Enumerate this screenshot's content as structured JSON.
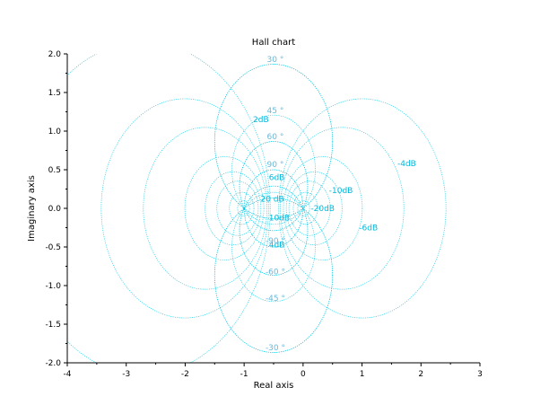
{
  "chart_data": {
    "type": "line",
    "title": "Hall chart",
    "xlabel": "Real axis",
    "ylabel": "Imaginary axis",
    "xlim": [
      -4,
      3
    ],
    "ylim": [
      -2,
      2
    ],
    "x_ticks": [
      -4,
      -3,
      -2,
      -1,
      0,
      1,
      2,
      3
    ],
    "x_tick_labels": [
      "-4",
      "-3",
      "-2",
      "-1",
      "0",
      "1",
      "2",
      "3"
    ],
    "y_ticks": [
      -2.0,
      -1.5,
      -1.0,
      -0.5,
      0.0,
      0.5,
      1.0,
      1.5,
      2.0
    ],
    "y_tick_labels": [
      "-2.0",
      "-1.5",
      "-1.0",
      "-0.5",
      "0.0",
      "0.5",
      "1.0",
      "1.5",
      "2.0"
    ],
    "grid": false,
    "colors": {
      "m_circles": "#00c8e6",
      "n_circles": "#00c8e6",
      "m_labels": "#00b8dc",
      "n_labels": "#6ab8d8"
    },
    "m_circles": [
      {
        "label": "20 dB",
        "db": 20,
        "label_x": -0.72,
        "label_y": 0.12
      },
      {
        "label": "10dB",
        "db": 10,
        "label_x": -0.58,
        "label_y": -0.12
      },
      {
        "label": "6dB",
        "db": 6,
        "label_x": -0.58,
        "label_y": 0.4
      },
      {
        "label": "4dB",
        "db": 4,
        "label_x": -0.58,
        "label_y": -0.47
      },
      {
        "label": "2dB",
        "db": 2,
        "label_x": -0.85,
        "label_y": 1.15
      },
      {
        "label": "-20dB",
        "db": -20,
        "label_x": 0.13,
        "label_y": 0.0
      },
      {
        "label": "-10dB",
        "db": -10,
        "label_x": 0.44,
        "label_y": 0.23
      },
      {
        "label": "-6dB",
        "db": -6,
        "label_x": 0.95,
        "label_y": -0.25
      },
      {
        "label": "-4dB",
        "db": -4,
        "label_x": 1.6,
        "label_y": 0.58
      }
    ],
    "n_circles": [
      {
        "label": "30 °",
        "deg": 30,
        "label_x": -0.47,
        "label_y": 1.93
      },
      {
        "label": "45 °",
        "deg": 45,
        "label_x": -0.47,
        "label_y": 1.27
      },
      {
        "label": "60 °",
        "deg": 60,
        "label_x": -0.47,
        "label_y": 0.93
      },
      {
        "label": "90 °",
        "deg": 90,
        "label_x": -0.47,
        "label_y": 0.57
      },
      {
        "label": "-90 °",
        "deg": -90,
        "label_x": -0.47,
        "label_y": -0.42
      },
      {
        "label": "-60 °",
        "deg": -60,
        "label_x": -0.47,
        "label_y": -0.82
      },
      {
        "label": "-45 °",
        "deg": -45,
        "label_x": -0.47,
        "label_y": -1.16
      },
      {
        "label": "-30 °",
        "deg": -30,
        "label_x": -0.47,
        "label_y": -1.8
      }
    ]
  }
}
